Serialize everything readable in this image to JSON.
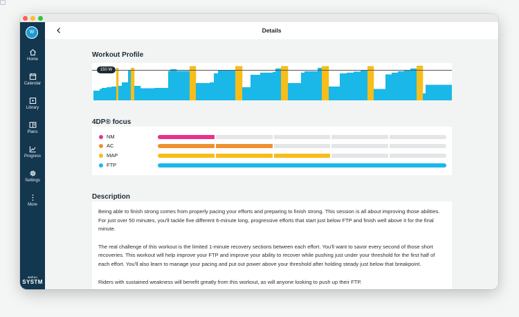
{
  "app": {
    "brand_small": "wahoo",
    "brand_name": "SYSTM",
    "user_initial": "W"
  },
  "header": {
    "title": "Details"
  },
  "sidebar": {
    "items": [
      {
        "label": "Home",
        "icon": "home-icon"
      },
      {
        "label": "Calendar",
        "icon": "calendar-icon"
      },
      {
        "label": "Library",
        "icon": "library-icon"
      },
      {
        "label": "Plans",
        "icon": "plans-icon"
      },
      {
        "label": "Progress",
        "icon": "progress-icon"
      },
      {
        "label": "Settings",
        "icon": "gear-icon"
      },
      {
        "label": "More",
        "icon": "more-icon"
      }
    ]
  },
  "profile": {
    "title": "Workout Profile",
    "ftp_label": "150 W",
    "colors": {
      "endurance": "#1ab8e8",
      "effort": "#f7bd1b",
      "ftp_line": "#555555"
    },
    "bars": [
      [
        9,
        0.28,
        "e"
      ],
      [
        3,
        0.33,
        "e"
      ],
      [
        7,
        0.36,
        "e"
      ],
      [
        7,
        0.38,
        "e"
      ],
      [
        7,
        0.4,
        "e"
      ],
      [
        3,
        0.94,
        "y"
      ],
      [
        5,
        0.42,
        "e"
      ],
      [
        9,
        0.52,
        "e"
      ],
      [
        4,
        0.88,
        "e"
      ],
      [
        5,
        0.94,
        "y"
      ],
      [
        9,
        0.42,
        "e"
      ],
      [
        20,
        0.35,
        "e"
      ],
      [
        20,
        0.36,
        "e"
      ],
      [
        3,
        0.85,
        "e"
      ],
      [
        9,
        0.9,
        "e"
      ],
      [
        19,
        0.85,
        "e"
      ],
      [
        9,
        0.99,
        "y"
      ],
      [
        20,
        0.5,
        "e"
      ],
      [
        6,
        0.52,
        "e"
      ],
      [
        6,
        0.78,
        "e"
      ],
      [
        20,
        0.86,
        "e"
      ],
      [
        5,
        0.88,
        "e"
      ],
      [
        10,
        0.99,
        "y"
      ],
      [
        12,
        0.38,
        "e"
      ],
      [
        14,
        0.74,
        "e"
      ],
      [
        18,
        0.8,
        "e"
      ],
      [
        4,
        0.82,
        "e"
      ],
      [
        8,
        0.92,
        "e"
      ],
      [
        10,
        0.99,
        "y"
      ],
      [
        19,
        0.5,
        "e"
      ],
      [
        5,
        0.8,
        "e"
      ],
      [
        19,
        0.84,
        "e"
      ],
      [
        6,
        0.94,
        "e"
      ],
      [
        10,
        0.99,
        "y"
      ],
      [
        16,
        0.4,
        "e"
      ],
      [
        10,
        0.78,
        "e"
      ],
      [
        10,
        0.8,
        "e"
      ],
      [
        10,
        0.83,
        "e"
      ],
      [
        10,
        0.87,
        "e"
      ],
      [
        9,
        0.99,
        "y"
      ],
      [
        17,
        0.33,
        "e"
      ],
      [
        9,
        0.75,
        "e"
      ],
      [
        9,
        0.8,
        "e"
      ],
      [
        9,
        0.84,
        "e"
      ],
      [
        9,
        0.88,
        "e"
      ],
      [
        9,
        0.92,
        "e"
      ],
      [
        9,
        1.0,
        "y"
      ],
      [
        4,
        0.2,
        "e"
      ],
      [
        44,
        0.45,
        "e"
      ]
    ]
  },
  "focus": {
    "title": "4DP® focus",
    "track_color": "#e3e5e6",
    "items": [
      {
        "label": "NM",
        "color": "#e6338c",
        "level": 1
      },
      {
        "label": "AC",
        "color": "#f0902e",
        "level": 2
      },
      {
        "label": "MAP",
        "color": "#f7bd1b",
        "level": 3
      },
      {
        "label": "FTP",
        "color": "#1ab8e8",
        "level": 5
      }
    ],
    "max_level": 5
  },
  "description": {
    "title": "Description",
    "paragraphs": [
      "Being able to finish strong comes from properly pacing your efforts and preparing to finish strong. This session is all about improving those abilities. For just over 50 minutes, you'll tackle five different 6-minute long, progressive efforts that start just below FTP and finish well above it for the final minute.",
      "The real challenge of this workout is the limited 1-minute recovery sections between each effort. You'll want to savor every second of those short recoveries. This workout will help improve your FTP and improve your ability to recover while pushing just under your threshold for the first half of each effort. You'll also learn to manage your pacing and put out power above your threshold after holding steady just below that breakpoint.",
      "Riders with sustained weakness will benefit greatly from this workout, as will anyone looking to push up their FTP."
    ]
  }
}
